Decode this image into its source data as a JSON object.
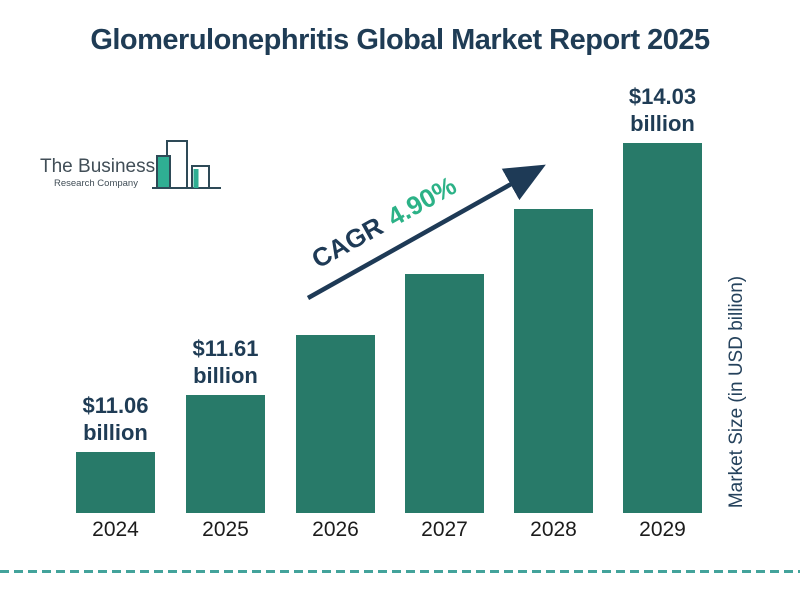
{
  "title": "Glomerulonephritis Global Market Report 2025",
  "logo": {
    "line1": "The Business",
    "line2": "Research Company"
  },
  "cagr": {
    "prefix": "CAGR",
    "value": "4.90%"
  },
  "y_axis_label": "Market Size (in USD billion)",
  "chart_data": {
    "type": "bar",
    "title": "Glomerulonephritis Global Market Report 2025",
    "categories": [
      "2024",
      "2025",
      "2026",
      "2027",
      "2028",
      "2029"
    ],
    "values": [
      11.06,
      11.61,
      12.18,
      12.77,
      13.4,
      14.03
    ],
    "values_note": "2026-2028 bars are unlabeled in the image; values estimated from the 4.90% CAGR",
    "value_labels": [
      {
        "amount": "$11.06",
        "unit": "billion"
      },
      {
        "amount": "$11.61",
        "unit": "billion"
      },
      null,
      null,
      null,
      {
        "amount": "$14.03",
        "unit": "billion"
      }
    ],
    "xlabel": "",
    "ylabel": "Market Size (in USD billion)",
    "annotation": "CAGR 4.90%",
    "legend": false,
    "grid": false,
    "bar_color": "#287a69",
    "label_color": "#1f3c55",
    "annotation_green": "#2cb287",
    "arrow_color": "#1e3a56"
  }
}
